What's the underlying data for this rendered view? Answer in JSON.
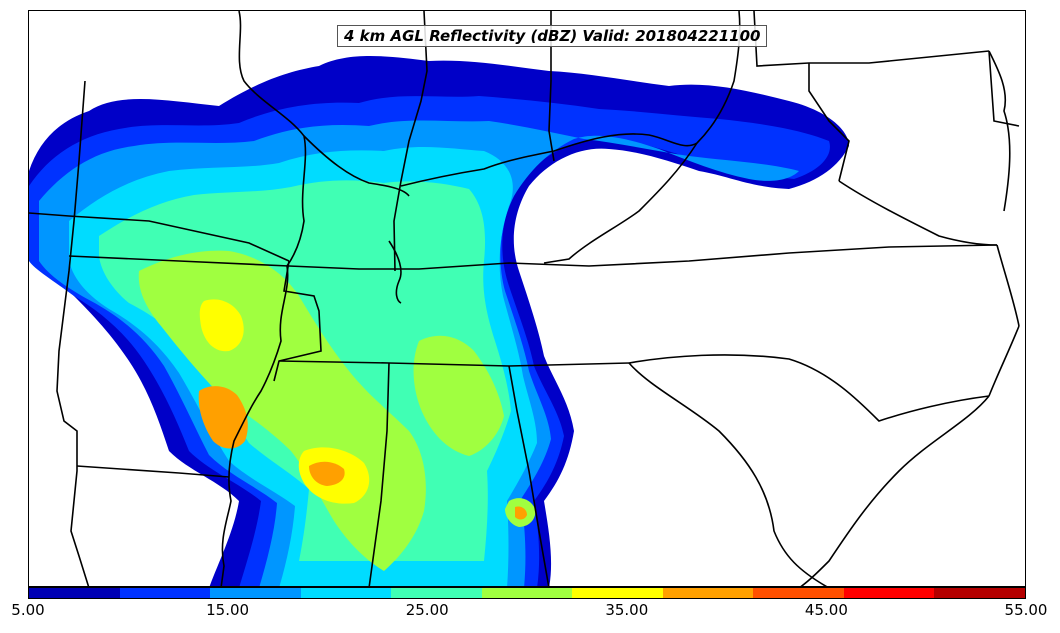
{
  "title": "4 km AGL Reflectivity (dBZ) Valid: 201804221100",
  "colorbar": {
    "tick_labels": [
      "5.00",
      "15.00",
      "25.00",
      "35.00",
      "45.00",
      "55.00"
    ],
    "tick_values": [
      5,
      15,
      25,
      35,
      45,
      55
    ],
    "levels": [
      5,
      10,
      15,
      20,
      25,
      30,
      35,
      40,
      45,
      50,
      55
    ],
    "colors": [
      "#0000b4",
      "#0032ff",
      "#0096ff",
      "#00dcff",
      "#40ffb4",
      "#a0ff40",
      "#ffff00",
      "#ffa000",
      "#ff5000",
      "#ff0000",
      "#b40000"
    ]
  },
  "map": {
    "background": "#ffffff",
    "boundary_color": "#000000"
  }
}
